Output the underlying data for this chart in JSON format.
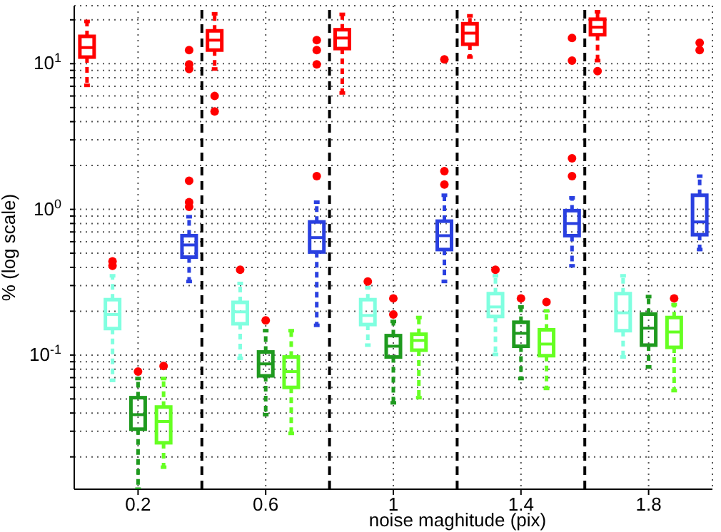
{
  "chart_data": {
    "type": "box",
    "xlabel": "noise maghitude (pix)",
    "ylabel": "% (log scale)",
    "xlim": [
      0,
      2
    ],
    "xticks": [
      0.2,
      0.6,
      1,
      1.4,
      1.8
    ],
    "ylim": [
      0.012,
      25
    ],
    "log": true,
    "grid": true,
    "yticks": [
      {
        "value": 0.02,
        "label": null
      },
      {
        "value": 0.03,
        "label": null
      },
      {
        "value": 0.04,
        "label": null
      },
      {
        "value": 0.05,
        "label": null
      },
      {
        "value": 0.06,
        "label": null
      },
      {
        "value": 0.07,
        "label": null
      },
      {
        "value": 0.08,
        "label": null
      },
      {
        "value": 0.09,
        "label": null
      },
      {
        "value": 0.1,
        "label": "10$^{-1}$"
      },
      {
        "value": 0.2,
        "label": null
      },
      {
        "value": 0.3,
        "label": null
      },
      {
        "value": 0.4,
        "label": null
      },
      {
        "value": 0.5,
        "label": null
      },
      {
        "value": 0.6,
        "label": null
      },
      {
        "value": 0.7,
        "label": null
      },
      {
        "value": 0.8,
        "label": null
      },
      {
        "value": 0.9,
        "label": null
      },
      {
        "value": 1,
        "label": "10$^{0}$"
      },
      {
        "value": 2,
        "label": null
      },
      {
        "value": 3,
        "label": null
      },
      {
        "value": 4,
        "label": null
      },
      {
        "value": 5,
        "label": null
      },
      {
        "value": 6,
        "label": null
      },
      {
        "value": 7,
        "label": null
      },
      {
        "value": 8,
        "label": null
      },
      {
        "value": 9,
        "label": null
      },
      {
        "value": 10,
        "label": "10$^{1}$"
      },
      {
        "value": 20,
        "label": null
      }
    ],
    "ref_lines": [
      {
        "axis": "x",
        "value": 0.4,
        "color": "#000000",
        "line_style": "dashed"
      },
      {
        "axis": "x",
        "value": 0.8,
        "color": "#000000",
        "line_style": "dashed"
      },
      {
        "axis": "x",
        "value": 1.2,
        "color": "#000000",
        "line_style": "dashed"
      },
      {
        "axis": "x",
        "value": 1.6,
        "color": "#000000",
        "line_style": "dashed"
      }
    ],
    "series": [
      {
        "color": "#ff0000",
        "x": [
          0.04,
          0.44,
          0.84,
          1.24,
          1.64
        ],
        "boxes": [
          {
            "low": 7.1,
            "q1": 11.1,
            "median": 12.9,
            "q3": 15.4,
            "high": 19.5
          },
          {
            "low": 9.2,
            "q1": 12.4,
            "median": 14.5,
            "q3": 16.8,
            "high": 22,
            "outliers": [
              6,
              4.7
            ]
          },
          {
            "low": 6.3,
            "q1": 12.7,
            "median": 15,
            "q3": 17.1,
            "high": 21.8
          },
          {
            "low": 11.1,
            "q1": 13.6,
            "median": 16.2,
            "q3": 18.8,
            "high": 21.3
          },
          {
            "low": 10.5,
            "q1": 15.8,
            "median": 17.8,
            "q3": 20.2,
            "high": 22.7,
            "outliers": [
              8.9
            ]
          }
        ]
      },
      {
        "color": "#80ffe0",
        "x": [
          0.12,
          0.52,
          0.92,
          1.32,
          1.72
        ],
        "boxes": [
          {
            "low": 0.067,
            "q1": 0.152,
            "median": 0.19,
            "q3": 0.24,
            "high": 0.35,
            "outliers": [
              0.44,
              0.41
            ]
          },
          {
            "low": 0.095,
            "q1": 0.164,
            "median": 0.198,
            "q3": 0.23,
            "high": 0.31,
            "outliers": [
              0.385
            ]
          },
          {
            "low": 0.117,
            "q1": 0.162,
            "median": 0.187,
            "q3": 0.24,
            "high": 0.29,
            "outliers": [
              0.32
            ]
          },
          {
            "low": 0.101,
            "q1": 0.184,
            "median": 0.214,
            "q3": 0.264,
            "high": 0.35,
            "outliers": [
              0.385
            ]
          },
          {
            "low": 0.097,
            "q1": 0.147,
            "median": 0.195,
            "q3": 0.264,
            "high": 0.35
          }
        ]
      },
      {
        "color": "#1f9a1f",
        "x": [
          0.2,
          0.6,
          1,
          1.4,
          1.8
        ],
        "boxes": [
          {
            "low": 0.012,
            "q1": 0.031,
            "median": 0.039,
            "q3": 0.051,
            "high": 0.069,
            "outliers": [
              0.077
            ]
          },
          {
            "low": 0.039,
            "q1": 0.072,
            "median": 0.087,
            "q3": 0.105,
            "high": 0.147,
            "outliers": [
              0.173
            ]
          },
          {
            "low": 0.047,
            "q1": 0.097,
            "median": 0.115,
            "q3": 0.136,
            "high": 0.17,
            "outliers": [
              0.245,
              0.19
            ]
          },
          {
            "low": 0.069,
            "q1": 0.115,
            "median": 0.141,
            "q3": 0.168,
            "high": 0.214,
            "outliers": [
              0.245
            ]
          },
          {
            "low": 0.083,
            "q1": 0.117,
            "median": 0.153,
            "q3": 0.191,
            "high": 0.252
          }
        ]
      },
      {
        "color": "#66ff22",
        "x": [
          0.28,
          0.68,
          1.08,
          1.48,
          1.88
        ],
        "boxes": [
          {
            "low": 0.017,
            "q1": 0.025,
            "median": 0.035,
            "q3": 0.044,
            "high": 0.069,
            "outliers": [
              0.084
            ]
          },
          {
            "low": 0.029,
            "q1": 0.06,
            "median": 0.077,
            "q3": 0.097,
            "high": 0.147
          },
          {
            "low": 0.051,
            "q1": 0.108,
            "median": 0.126,
            "q3": 0.139,
            "high": 0.181
          },
          {
            "low": 0.059,
            "q1": 0.099,
            "median": 0.119,
            "q3": 0.149,
            "high": 0.201,
            "outliers": [
              0.231
            ]
          },
          {
            "low": 0.057,
            "q1": 0.113,
            "median": 0.144,
            "q3": 0.181,
            "high": 0.222,
            "outliers": [
              0.245
            ]
          }
        ]
      },
      {
        "color": "#2a40e0",
        "x": [
          0.36,
          0.76,
          1.16,
          1.56,
          1.96
        ],
        "boxes": [
          {
            "low": 0.32,
            "q1": 0.47,
            "median": 0.57,
            "q3": 0.66,
            "high": 0.89,
            "outliers": [
              12.4,
              9.9,
              9.2,
              1.57,
              1.12,
              1.04
            ]
          },
          {
            "low": 0.16,
            "q1": 0.51,
            "median": 0.64,
            "q3": 0.82,
            "high": 1.12,
            "outliers": [
              14.5,
              12.4,
              9.9,
              1.69
            ]
          },
          {
            "low": 0.32,
            "q1": 0.53,
            "median": 0.66,
            "q3": 0.83,
            "high": 1.25,
            "outliers": [
              10.7,
              1.83,
              1.48
            ]
          },
          {
            "low": 0.41,
            "q1": 0.66,
            "median": 0.8,
            "q3": 0.98,
            "high": 1.2,
            "outliers": [
              15,
              10.5,
              2.24,
              1.69
            ]
          },
          {
            "low": 0.53,
            "q1": 0.67,
            "median": 0.82,
            "q3": 1.25,
            "high": 1.69,
            "outliers": [
              13.9,
              12.4
            ]
          }
        ]
      }
    ]
  }
}
